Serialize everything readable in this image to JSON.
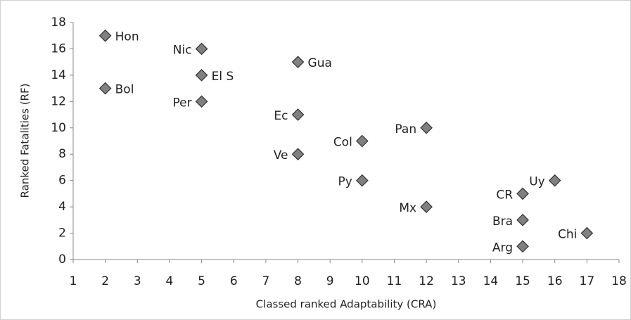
{
  "chart_data": {
    "type": "scatter",
    "x_label": "Classed ranked Adaptability (CRA)",
    "y_label": "Ranked Fatalities (RF)",
    "point_labels": [
      "Hon",
      "Bol",
      "Nic",
      "El S",
      "Per",
      "Gua",
      "Ec",
      "Ve",
      "Col",
      "Py",
      "Pan",
      "Mx",
      "Uy",
      "CR",
      "Bra",
      "Arg",
      "Chi"
    ],
    "x": [
      2,
      2,
      5,
      5,
      5,
      8,
      8,
      8,
      10,
      10,
      12,
      12,
      16,
      15,
      15,
      15,
      17
    ],
    "values": [
      17,
      13,
      16,
      14,
      12,
      15,
      11,
      8,
      9,
      6,
      10,
      4,
      6,
      5,
      3,
      1,
      2
    ],
    "color": "#808080",
    "xlim": [
      1,
      18
    ],
    "xticks": [
      1,
      2,
      3,
      4,
      5,
      6,
      7,
      8,
      9,
      10,
      11,
      12,
      13,
      14,
      15,
      16,
      17,
      18
    ],
    "ylim": [
      0,
      18
    ],
    "yticks": [
      0,
      2,
      4,
      6,
      8,
      10,
      12,
      14,
      16,
      18
    ],
    "grid": false
  }
}
